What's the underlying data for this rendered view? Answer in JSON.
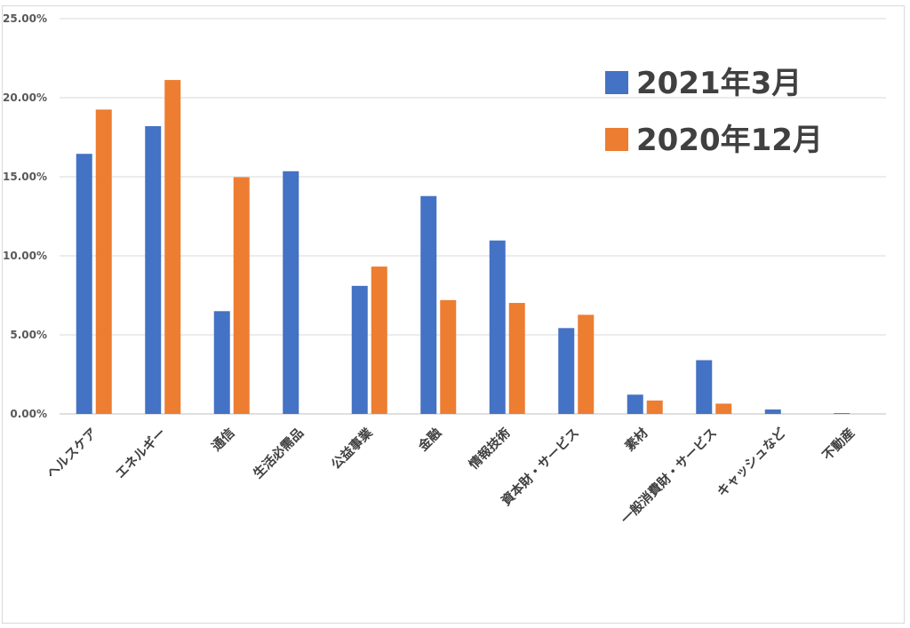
{
  "chart_data": {
    "type": "bar",
    "categories": [
      "ヘルスケア",
      "エネルギー",
      "通信",
      "生活必需品",
      "公益事業",
      "金融",
      "情報技術",
      "資本財・サービス",
      "素材",
      "一般消費財・サービス",
      "キャッシュなど",
      "不動産"
    ],
    "series": [
      {
        "name": "2021年3月",
        "color": "#4472C4",
        "values": [
          16.45,
          18.2,
          6.5,
          15.35,
          8.1,
          13.78,
          10.97,
          5.43,
          1.22,
          3.4,
          0.28,
          0.05
        ]
      },
      {
        "name": "2020年12月",
        "color": "#ED7D31",
        "values": [
          19.25,
          21.12,
          14.97,
          0,
          9.32,
          7.2,
          7.02,
          6.27,
          0.85,
          0.65,
          0,
          0
        ]
      }
    ],
    "yticks": [
      "0.00%",
      "5.00%",
      "10.00%",
      "15.00%",
      "20.00%",
      "25.00%"
    ],
    "ylim": [
      0,
      25
    ],
    "grid": true,
    "legend_position": "top-right"
  }
}
